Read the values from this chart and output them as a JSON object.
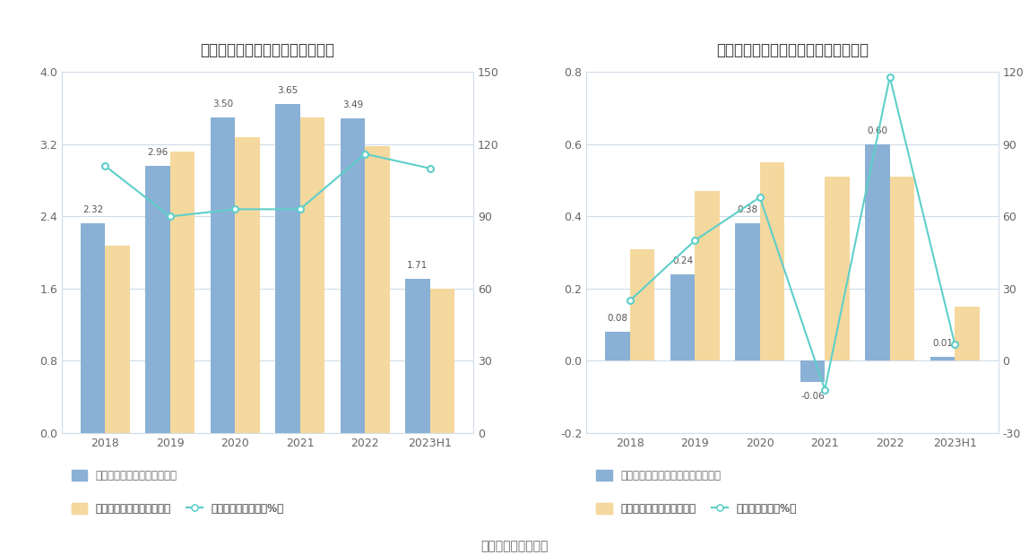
{
  "left_chart": {
    "title": "历年经营现金流入、营业收入情况",
    "years": [
      "2018",
      "2019",
      "2020",
      "2021",
      "2022",
      "2023H1"
    ],
    "blue_bars": [
      2.32,
      2.96,
      3.5,
      3.65,
      3.49,
      1.71
    ],
    "yellow_bars": [
      2.08,
      3.12,
      3.28,
      3.5,
      3.18,
      1.6
    ],
    "line_values": [
      111,
      90,
      93,
      93,
      116,
      110
    ],
    "left_ylim": [
      0,
      4
    ],
    "left_yticks": [
      0,
      0.8,
      1.6,
      2.4,
      3.2,
      4
    ],
    "right_ylim": [
      0,
      150
    ],
    "right_yticks": [
      0,
      30,
      60,
      90,
      120,
      150
    ],
    "bar_width": 0.38,
    "blue_color": "#8ab0d5",
    "yellow_color": "#f5d89e",
    "line_color": "#5ecfca",
    "legend1": "左轴：经营现金流入（亿元）",
    "legend2": "左轴：营业总收入（亿元）",
    "legend3": "右轴：营收现金比（%）"
  },
  "right_chart": {
    "title": "历年经营现金流净额、归母净利润情况",
    "years": [
      "2018",
      "2019",
      "2020",
      "2021",
      "2022",
      "2023H1"
    ],
    "blue_bars": [
      0.08,
      0.24,
      0.38,
      -0.06,
      0.6,
      0.01
    ],
    "yellow_bars": [
      0.31,
      0.47,
      0.55,
      0.51,
      0.51,
      0.15
    ],
    "line_values": [
      25,
      50,
      68,
      -12,
      118,
      7
    ],
    "left_ylim": [
      -0.2,
      0.8
    ],
    "left_yticks": [
      -0.2,
      0,
      0.2,
      0.4,
      0.6,
      0.8
    ],
    "right_ylim": [
      -30,
      120
    ],
    "right_yticks": [
      -30,
      0,
      30,
      60,
      90,
      120
    ],
    "bar_width": 0.38,
    "blue_color": "#8ab0d5",
    "yellow_color": "#f5d89e",
    "line_color": "#5ecfca",
    "legend1": "左轴：经营活动现金流净额（亿元）",
    "legend2": "左轴：归母净利润（亿元）",
    "legend3": "右轴：净现比（%）"
  },
  "footer": "数据来源：恒生聚源",
  "bg_color": "#ffffff",
  "grid_color": "#d0dce8",
  "text_color": "#666666",
  "title_color": "#333333",
  "annotation_color": "#555555"
}
